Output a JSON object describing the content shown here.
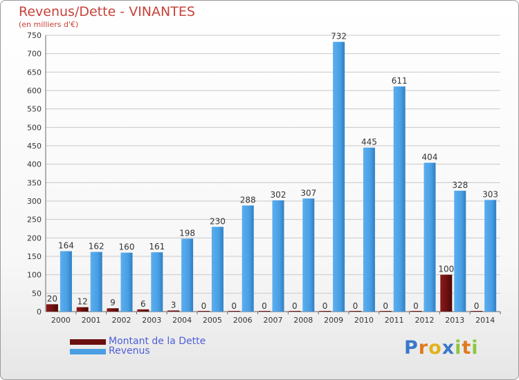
{
  "chart_data": {
    "type": "bar",
    "title": "Revenus/Dette - VINANTES",
    "subtitle": "(en milliers d'€)",
    "categories": [
      "2000",
      "2001",
      "2002",
      "2003",
      "2004",
      "2005",
      "2006",
      "2007",
      "2008",
      "2009",
      "2010",
      "2011",
      "2012",
      "2013",
      "2014"
    ],
    "series": [
      {
        "name": "Montant de la Dette",
        "color": "#6b0f0f",
        "values": [
          20,
          12,
          9,
          6,
          3,
          0,
          0,
          0,
          0,
          0,
          0,
          0,
          0,
          100,
          0
        ]
      },
      {
        "name": "Revenus",
        "color": "#4a9fe3",
        "values": [
          164,
          162,
          160,
          161,
          198,
          230,
          288,
          302,
          307,
          732,
          445,
          611,
          404,
          328,
          303
        ]
      }
    ],
    "ylim": [
      0,
      750
    ],
    "yticks": [
      0,
      50,
      100,
      150,
      200,
      250,
      300,
      350,
      400,
      450,
      500,
      550,
      600,
      650,
      700,
      750
    ],
    "grid": true,
    "legend_position": "bottom-left"
  },
  "logo": {
    "letters": [
      "P",
      "r",
      "o",
      "x",
      "i",
      "t",
      "i"
    ],
    "colors": [
      "#3a78c8",
      "#e07a1e",
      "#e0b21e",
      "#3a78c8",
      "#8cc63f",
      "#e07a1e",
      "#8cc63f"
    ]
  }
}
